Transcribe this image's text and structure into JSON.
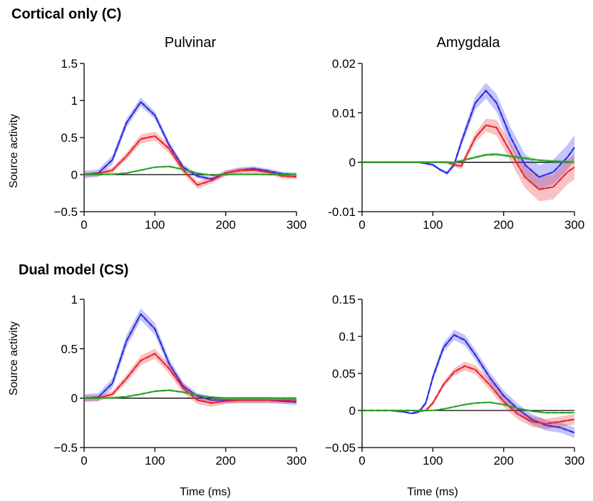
{
  "figure": {
    "sections": [
      {
        "title": "Cortical only (C)"
      },
      {
        "title": "Dual model (CS)"
      }
    ],
    "ylabel": "Source activity",
    "xlabel": "Time (ms)"
  },
  "colors": {
    "blue": "#2a2ae6",
    "red": "#e8242c",
    "green": "#27a327",
    "zero_line": "#000000"
  },
  "chart_data": [
    {
      "type": "line",
      "section": "Cortical only (C)",
      "title": "Pulvinar",
      "xlabel": "",
      "ylabel": "Source activity",
      "xlim": [
        0,
        300
      ],
      "ylim": [
        -0.5,
        1.5
      ],
      "x_ticks": [
        "0",
        "100",
        "200",
        "300"
      ],
      "y_ticks": [
        {
          "value": -0.5,
          "label": "−0.5"
        },
        {
          "value": 0,
          "label": "0"
        },
        {
          "value": 0.5,
          "label": "0.5"
        },
        {
          "value": 1,
          "label": "1"
        },
        {
          "value": 1.5,
          "label": "1.5"
        }
      ],
      "x": [
        0,
        20,
        40,
        60,
        80,
        100,
        120,
        140,
        160,
        180,
        200,
        220,
        240,
        260,
        280,
        300
      ],
      "series": [
        {
          "color": "blue",
          "values": [
            0,
            0.02,
            0.2,
            0.7,
            0.98,
            0.8,
            0.4,
            0.1,
            -0.02,
            -0.06,
            0.02,
            0.06,
            0.08,
            0.05,
            0.01,
            0.0
          ],
          "band": [
            0.05,
            0.05,
            0.06,
            0.06,
            0.06,
            0.05,
            0.05,
            0.04,
            0.03,
            0.03,
            0.03,
            0.03,
            0.03,
            0.03,
            0.03,
            0.03
          ]
        },
        {
          "color": "red",
          "values": [
            0,
            0.01,
            0.06,
            0.25,
            0.48,
            0.52,
            0.35,
            0.06,
            -0.14,
            -0.08,
            0.02,
            0.06,
            0.06,
            0.03,
            -0.02,
            -0.03
          ],
          "band": [
            0.03,
            0.03,
            0.04,
            0.05,
            0.06,
            0.06,
            0.06,
            0.05,
            0.05,
            0.04,
            0.04,
            0.04,
            0.04,
            0.03,
            0.03,
            0.03
          ]
        },
        {
          "color": "green",
          "values": [
            0,
            0,
            0.005,
            0.02,
            0.06,
            0.1,
            0.11,
            0.07,
            0.02,
            -0.01,
            0,
            0.005,
            0.005,
            0,
            0,
            0
          ],
          "band": [
            0.01,
            0.01,
            0.01,
            0.01,
            0.01,
            0.01,
            0.01,
            0.01,
            0.01,
            0.01,
            0.01,
            0.01,
            0.01,
            0.01,
            0.01,
            0.01
          ]
        }
      ]
    },
    {
      "type": "line",
      "section": "Cortical only (C)",
      "title": "Amygdala",
      "xlabel": "",
      "ylabel": "",
      "xlim": [
        0,
        300
      ],
      "ylim": [
        -0.01,
        0.02
      ],
      "x_ticks": [
        "0",
        "100",
        "200",
        "300"
      ],
      "y_ticks": [
        {
          "value": -0.01,
          "label": "-0.01"
        },
        {
          "value": 0,
          "label": "0"
        },
        {
          "value": 0.01,
          "label": "0.01"
        },
        {
          "value": 0.02,
          "label": "0.02"
        }
      ],
      "x": [
        0,
        20,
        40,
        60,
        80,
        100,
        110,
        120,
        130,
        140,
        160,
        175,
        190,
        210,
        230,
        250,
        270,
        290,
        300
      ],
      "series": [
        {
          "color": "blue",
          "values": [
            0,
            0,
            0,
            0,
            0,
            -0.0005,
            -0.0015,
            -0.0022,
            -0.0005,
            0.004,
            0.012,
            0.0145,
            0.012,
            0.005,
            -0.0005,
            -0.003,
            -0.002,
            0.001,
            0.003
          ],
          "band": [
            0.0002,
            0.0002,
            0.0002,
            0.0002,
            0.0002,
            0.0003,
            0.0003,
            0.0004,
            0.0006,
            0.0009,
            0.0013,
            0.0016,
            0.0018,
            0.002,
            0.0022,
            0.0024,
            0.0025,
            0.0025,
            0.0025
          ]
        },
        {
          "color": "red",
          "values": [
            0,
            0,
            0,
            0,
            0,
            0,
            0,
            0,
            -0.0005,
            -0.0008,
            0.005,
            0.0075,
            0.007,
            0.002,
            -0.003,
            -0.0055,
            -0.005,
            -0.002,
            -0.001
          ],
          "band": [
            0.0002,
            0.0002,
            0.0002,
            0.0002,
            0.0002,
            0.0002,
            0.0002,
            0.0003,
            0.0004,
            0.0006,
            0.001,
            0.0013,
            0.0016,
            0.0019,
            0.0022,
            0.0024,
            0.0025,
            0.0025,
            0.0025
          ]
        },
        {
          "color": "green",
          "values": [
            0,
            0,
            0,
            0,
            0,
            0,
            0,
            0,
            0,
            0.0003,
            0.001,
            0.0015,
            0.0016,
            0.0012,
            0.0008,
            0.0004,
            0.0002,
            0.0001,
            0
          ],
          "band": [
            0.0002,
            0.0002,
            0.0002,
            0.0002,
            0.0002,
            0.0002,
            0.0002,
            0.0002,
            0.0002,
            0.0002,
            0.0003,
            0.0003,
            0.0003,
            0.0003,
            0.0003,
            0.0003,
            0.0003,
            0.0003,
            0.0003
          ]
        }
      ]
    },
    {
      "type": "line",
      "section": "Dual model (CS)",
      "title": "",
      "xlabel": "Time (ms)",
      "ylabel": "Source activity",
      "xlim": [
        0,
        300
      ],
      "ylim": [
        -0.5,
        1
      ],
      "x_ticks": [
        "0",
        "100",
        "200",
        "300"
      ],
      "y_ticks": [
        {
          "value": -0.5,
          "label": "−0.5"
        },
        {
          "value": 0,
          "label": "0"
        },
        {
          "value": 0.5,
          "label": "0.5"
        },
        {
          "value": 1,
          "label": "1"
        }
      ],
      "x": [
        0,
        20,
        40,
        60,
        80,
        100,
        120,
        140,
        160,
        180,
        200,
        220,
        240,
        260,
        280,
        300
      ],
      "series": [
        {
          "color": "blue",
          "values": [
            0,
            0.01,
            0.15,
            0.58,
            0.85,
            0.7,
            0.35,
            0.12,
            0.02,
            -0.02,
            -0.02,
            -0.02,
            -0.02,
            -0.02,
            -0.03,
            -0.04
          ],
          "band": [
            0.04,
            0.04,
            0.05,
            0.06,
            0.06,
            0.06,
            0.05,
            0.04,
            0.03,
            0.03,
            0.03,
            0.03,
            0.03,
            0.03,
            0.03,
            0.03
          ]
        },
        {
          "color": "red",
          "values": [
            0,
            0,
            0.04,
            0.2,
            0.38,
            0.45,
            0.3,
            0.1,
            -0.02,
            -0.05,
            -0.03,
            -0.02,
            -0.02,
            -0.02,
            -0.02,
            -0.02
          ],
          "band": [
            0.03,
            0.03,
            0.03,
            0.04,
            0.05,
            0.05,
            0.05,
            0.05,
            0.04,
            0.04,
            0.03,
            0.03,
            0.03,
            0.03,
            0.03,
            0.03
          ]
        },
        {
          "color": "green",
          "values": [
            0,
            0,
            0.003,
            0.015,
            0.04,
            0.07,
            0.08,
            0.06,
            0.03,
            0.01,
            0,
            0,
            0,
            0,
            0,
            0
          ],
          "band": [
            0.01,
            0.01,
            0.01,
            0.01,
            0.01,
            0.01,
            0.01,
            0.01,
            0.01,
            0.01,
            0.01,
            0.01,
            0.01,
            0.01,
            0.01,
            0.01
          ]
        }
      ]
    },
    {
      "type": "line",
      "section": "Dual model (CS)",
      "title": "",
      "xlabel": "Time (ms)",
      "ylabel": "",
      "xlim": [
        0,
        300
      ],
      "ylim": [
        -0.05,
        0.15
      ],
      "x_ticks": [
        "0",
        "100",
        "200",
        "300"
      ],
      "y_ticks": [
        {
          "value": -0.05,
          "label": "−0.05"
        },
        {
          "value": 0,
          "label": "0"
        },
        {
          "value": 0.05,
          "label": "0.05"
        },
        {
          "value": 0.1,
          "label": "0.1"
        },
        {
          "value": 0.15,
          "label": "0.15"
        }
      ],
      "x": [
        0,
        20,
        40,
        60,
        70,
        80,
        90,
        100,
        115,
        130,
        145,
        160,
        180,
        200,
        220,
        240,
        260,
        280,
        300
      ],
      "series": [
        {
          "color": "blue",
          "values": [
            0,
            0,
            0,
            -0.002,
            -0.004,
            -0.002,
            0.01,
            0.045,
            0.085,
            0.102,
            0.095,
            0.075,
            0.045,
            0.02,
            0.002,
            -0.012,
            -0.02,
            -0.023,
            -0.03
          ],
          "band": [
            0.001,
            0.001,
            0.001,
            0.001,
            0.001,
            0.002,
            0.003,
            0.005,
            0.006,
            0.007,
            0.007,
            0.007,
            0.007,
            0.007,
            0.007,
            0.007,
            0.007,
            0.007,
            0.007
          ]
        },
        {
          "color": "red",
          "values": [
            0,
            0,
            0,
            0,
            0,
            -0.001,
            0,
            0.01,
            0.035,
            0.052,
            0.06,
            0.055,
            0.035,
            0.012,
            -0.005,
            -0.015,
            -0.018,
            -0.015,
            -0.012
          ],
          "band": [
            0.001,
            0.001,
            0.001,
            0.001,
            0.001,
            0.001,
            0.002,
            0.003,
            0.004,
            0.005,
            0.006,
            0.006,
            0.007,
            0.007,
            0.007,
            0.007,
            0.007,
            0.007,
            0.007
          ]
        },
        {
          "color": "green",
          "values": [
            0,
            0,
            0,
            0,
            0,
            0,
            0,
            0,
            0.002,
            0.005,
            0.008,
            0.01,
            0.011,
            0.008,
            0.003,
            -0.001,
            -0.003,
            -0.003,
            -0.003
          ],
          "band": [
            0.001,
            0.001,
            0.001,
            0.001,
            0.001,
            0.001,
            0.001,
            0.001,
            0.001,
            0.001,
            0.001,
            0.001,
            0.001,
            0.001,
            0.001,
            0.001,
            0.001,
            0.001,
            0.001
          ]
        }
      ]
    }
  ]
}
